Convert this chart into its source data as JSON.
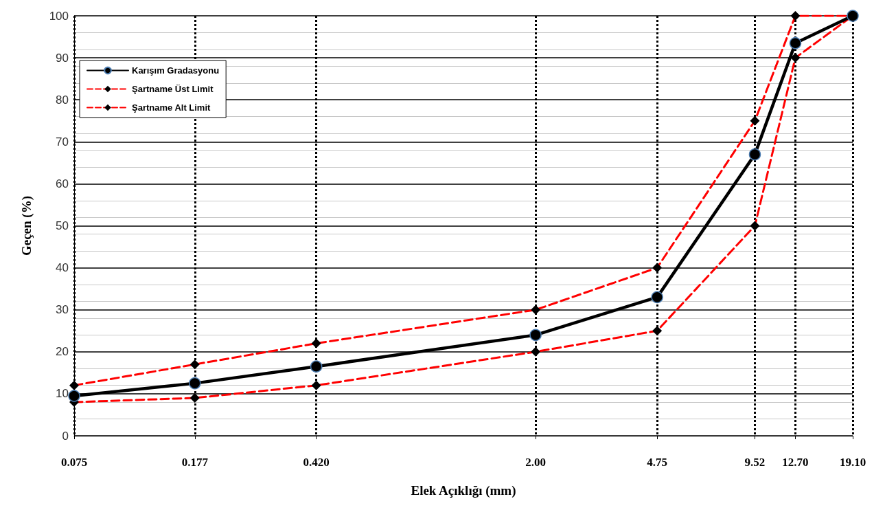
{
  "chart_data": {
    "type": "line",
    "xlabel": "Elek Açıklığı (mm)",
    "ylabel": "Geçen (%)",
    "log": "x",
    "x": [
      0.075,
      0.177,
      0.42,
      2,
      4.75,
      9.52,
      12.7,
      19.1
    ],
    "series": [
      {
        "name": "Karışım Gradasyonu",
        "color": "#000000",
        "marker": "circle",
        "line_style": "solid",
        "values": [
          9.5,
          12.5,
          16.5,
          24,
          33,
          67,
          93.5,
          100
        ]
      },
      {
        "name": "Şartname Üst Limit",
        "color": "#ff0000",
        "marker": "diamond",
        "line_style": "dashed",
        "values": [
          12,
          17,
          22,
          30,
          40,
          75,
          100,
          100
        ]
      },
      {
        "name": "Şartname Alt Limit",
        "color": "#ff0000",
        "marker": "diamond",
        "line_style": "dashed",
        "values": [
          8,
          9,
          12,
          20,
          25,
          50,
          90,
          100
        ]
      }
    ],
    "xlim": [
      0.075,
      19.1
    ],
    "xticks": [
      0.075,
      0.177,
      {
        "value": 0.42,
        "label": "0.420"
      },
      {
        "value": 2,
        "label": "2.00"
      },
      4.75,
      9.52,
      {
        "value": 12.7,
        "label": "12.70"
      },
      {
        "value": 19.1,
        "label": "19.10"
      }
    ],
    "ylim": [
      0,
      100
    ],
    "yticks": [
      0,
      10,
      20,
      30,
      40,
      50,
      60,
      70,
      80,
      90,
      100
    ],
    "grid": true,
    "legend": "top left"
  }
}
